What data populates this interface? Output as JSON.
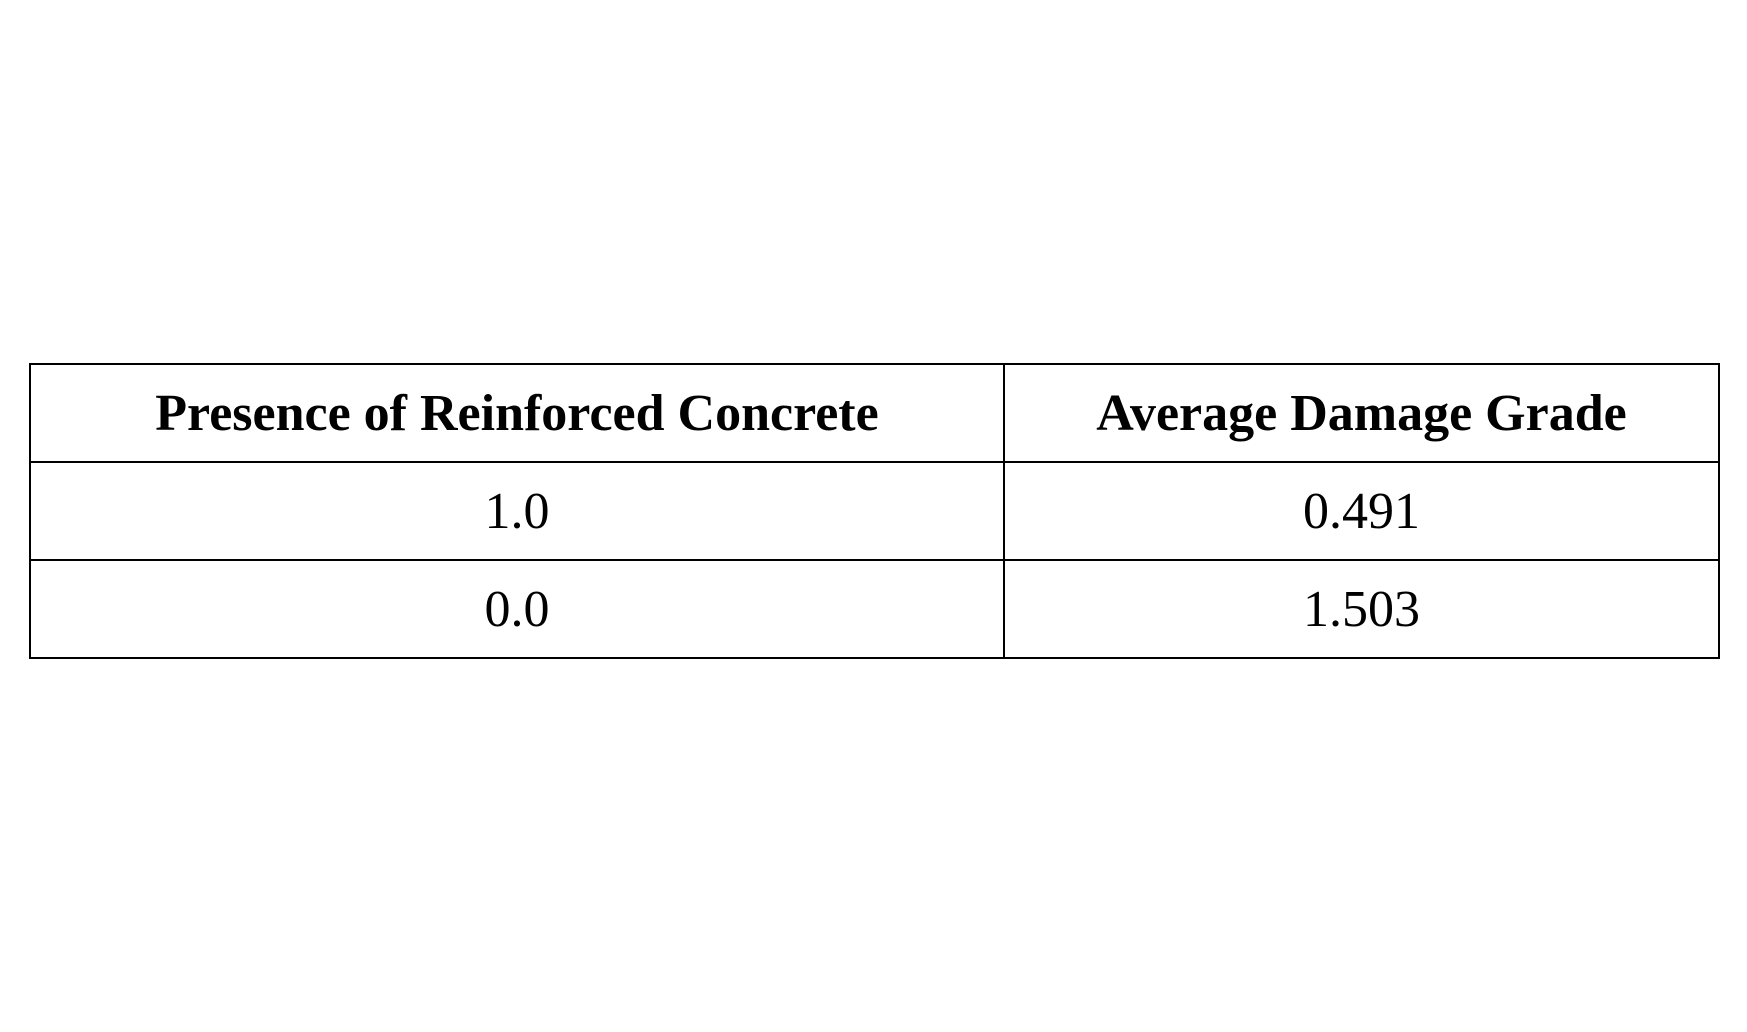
{
  "table": {
    "headers": [
      "Presence of Reinforced Concrete",
      "Average Damage Grade"
    ],
    "rows": [
      [
        "1.0",
        "0.491"
      ],
      [
        "0.0",
        "1.503"
      ]
    ]
  }
}
